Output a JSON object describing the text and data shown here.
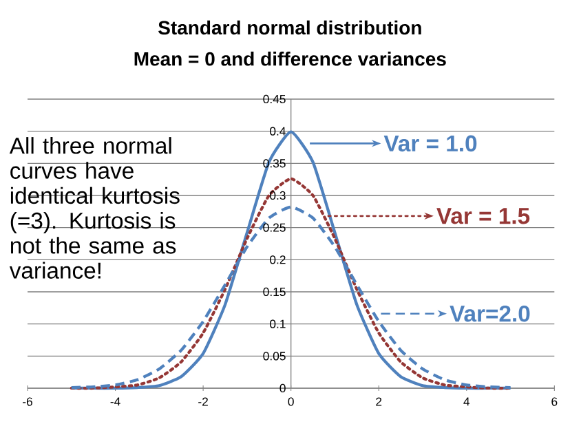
{
  "chart_data": {
    "type": "line",
    "title": "Standard normal distribution",
    "subtitle": "Mean = 0 and difference variances",
    "annotations": [
      "All three normal curves have identical kurtosis (=3). Kurtosis is not the same as variance!"
    ],
    "x": [
      -5,
      -4.5,
      -4,
      -3.5,
      -3,
      -2.5,
      -2,
      -1.5,
      -1,
      -0.5,
      0,
      0.5,
      1,
      1.5,
      2,
      2.5,
      3,
      3.5,
      4,
      4.5,
      5
    ],
    "series": [
      {
        "name": "Var = 1.0",
        "color": "#4f81bd",
        "line_style": "solid",
        "values": [
          0,
          0,
          0,
          0.001,
          0.004,
          0.018,
          0.054,
          0.13,
          0.242,
          0.352,
          0.399,
          0.352,
          0.242,
          0.13,
          0.054,
          0.018,
          0.004,
          0.001,
          0,
          0,
          0
        ]
      },
      {
        "name": "Var = 1.5",
        "color": "#953735",
        "line_style": "dotted",
        "values": [
          0,
          0,
          0.002,
          0.005,
          0.016,
          0.041,
          0.086,
          0.154,
          0.233,
          0.3,
          0.326,
          0.3,
          0.233,
          0.154,
          0.086,
          0.041,
          0.016,
          0.005,
          0.002,
          0,
          0
        ]
      },
      {
        "name": "Var=2.0",
        "color": "#4f81bd",
        "line_style": "dashed",
        "values": [
          0.001,
          0.002,
          0.005,
          0.013,
          0.03,
          0.059,
          0.104,
          0.161,
          0.22,
          0.265,
          0.282,
          0.265,
          0.22,
          0.161,
          0.104,
          0.059,
          0.03,
          0.013,
          0.005,
          0.002,
          0.001
        ]
      }
    ],
    "xlim": [
      -6,
      6
    ],
    "xticks": [
      -6,
      -4,
      -2,
      0,
      2,
      4,
      6
    ],
    "ylim": [
      0,
      0.45
    ],
    "yticks": [
      0,
      0.05,
      0.1,
      0.15,
      0.2,
      0.25,
      0.3,
      0.35,
      0.4,
      0.45
    ],
    "grid": "y",
    "legend": "right",
    "marker": "none"
  }
}
